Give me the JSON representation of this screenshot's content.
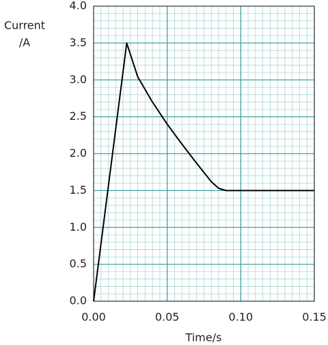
{
  "chart_data": {
    "type": "line",
    "x_label": "Time/s",
    "y_label": [
      "Current",
      "/A"
    ],
    "x": [
      0,
      0.0225,
      0.03,
      0.04,
      0.05,
      0.06,
      0.07,
      0.08,
      0.085,
      0.09,
      0.15
    ],
    "series": [
      {
        "color": "#000000",
        "values": [
          0,
          3.5,
          3.04,
          2.7,
          2.4,
          2.13,
          1.87,
          1.62,
          1.53,
          1.5,
          1.5
        ]
      }
    ],
    "xlim": [
      0,
      0.15
    ],
    "ylim": [
      0,
      4
    ],
    "xticks": [
      {
        "value": 0,
        "label": "0.00"
      },
      0.05,
      {
        "value": 0.1,
        "label": "0.10"
      },
      0.15
    ],
    "yticks": [
      {
        "value": 0,
        "label": "0.0"
      },
      0.5,
      {
        "value": 1,
        "label": "1.0"
      },
      1.5,
      {
        "value": 2,
        "label": "2.0"
      },
      2.5,
      {
        "value": 3,
        "label": "3.0"
      },
      3.5,
      {
        "value": 4,
        "label": "4.0"
      }
    ],
    "grid": true,
    "grid_color": "#3fa3a0",
    "minor_grid_color": "#a8d8d4",
    "minor_grid_step_x": 0.005,
    "minor_grid_step_y": 0.1
  }
}
